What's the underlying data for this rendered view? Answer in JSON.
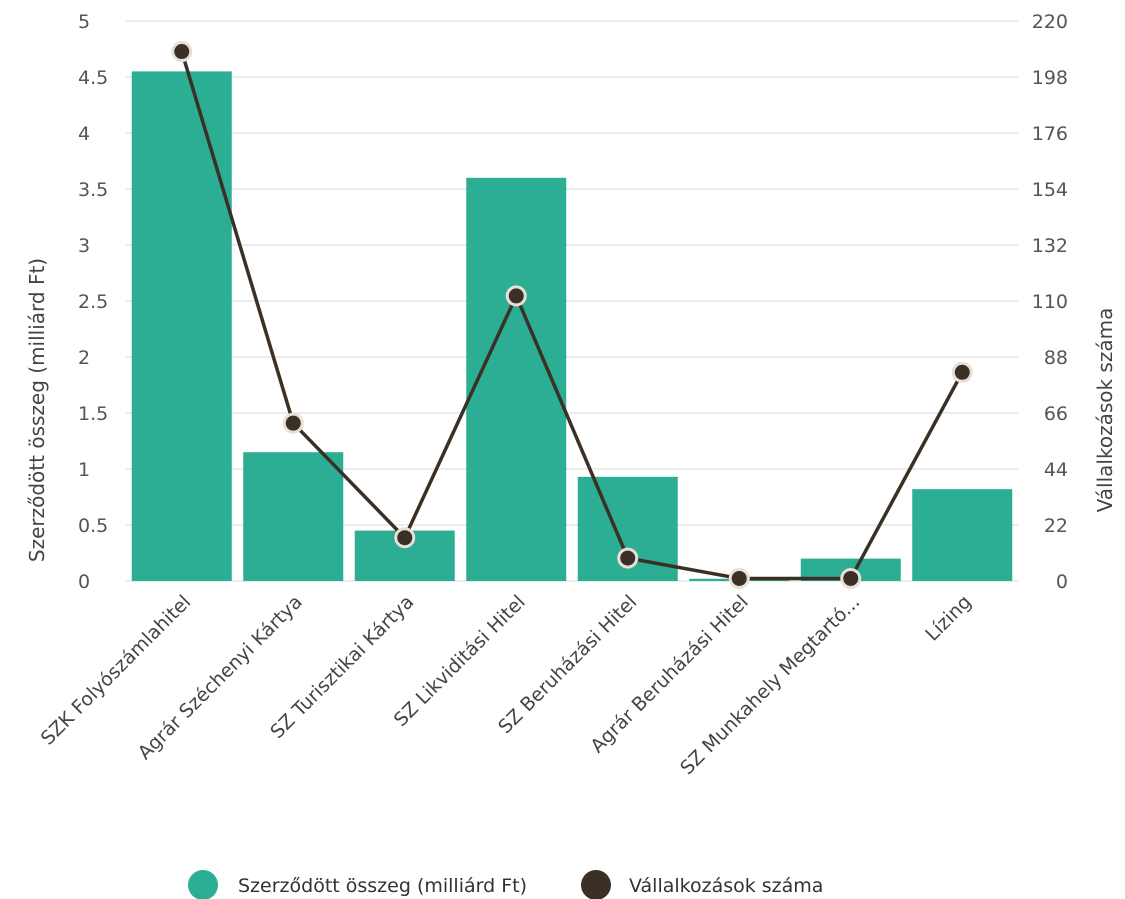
{
  "chart_data": {
    "type": "bar",
    "categories": [
      "SZK Folyószámlahitel",
      "Agrár Széchenyi Kártya",
      "SZ Turisztikai Kártya",
      "SZ Likviditási Hitel",
      "SZ Beruházási Hitel",
      "Agrár Beruházási Hitel",
      "SZ Munkahely Megtartó...",
      "Lízing"
    ],
    "series": [
      {
        "name": "Szerződött összeg (milliárd Ft)",
        "type": "bar",
        "axis": "left",
        "color": "#2BAE94",
        "values": [
          4.55,
          1.15,
          0.45,
          3.6,
          0.93,
          0.02,
          0.2,
          0.82
        ]
      },
      {
        "name": "Vállalkozások száma",
        "type": "line",
        "axis": "right",
        "color": "#3A3026",
        "values": [
          208,
          62,
          17,
          112,
          9,
          1,
          1,
          82
        ]
      }
    ],
    "ylabel": "Szerződött összeg (milliárd Ft)",
    "y2label": "Vállalkozások száma",
    "ylim": [
      0,
      5
    ],
    "y2lim": [
      0,
      220
    ],
    "yticks": [
      "0",
      "0.5",
      "1",
      "1.5",
      "2",
      "2.5",
      "3",
      "3.5",
      "4",
      "4.5",
      "5"
    ],
    "y2ticks": [
      "0",
      "22",
      "44",
      "66",
      "88",
      "110",
      "132",
      "154",
      "176",
      "198",
      "220"
    ],
    "grid": true,
    "legend_position": "bottom"
  }
}
